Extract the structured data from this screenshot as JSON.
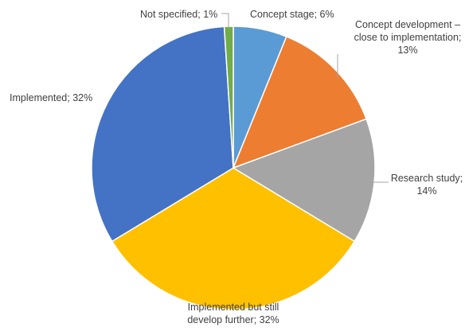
{
  "chart_data": {
    "type": "pie",
    "slices": [
      {
        "name": "Concept stage",
        "value": 6,
        "color": "#5B9BD5",
        "label_lines": [
          "Concept stage; 6%"
        ]
      },
      {
        "name": "Concept development – close to implementation",
        "value": 13,
        "color": "#ED7D31",
        "label_lines": [
          "Concept development –",
          "close to implementation;",
          "13%"
        ]
      },
      {
        "name": "Research study",
        "value": 14,
        "color": "#A5A5A5",
        "label_lines": [
          "Research study;",
          "14%"
        ]
      },
      {
        "name": "Implemented but still develop further",
        "value": 32,
        "color": "#FFC000",
        "label_lines": [
          "Implemented but still",
          "develop further; 32%"
        ]
      },
      {
        "name": "Implemented",
        "value": 32,
        "color": "#4472C4",
        "label_lines": [
          "Implemented; 32%"
        ]
      },
      {
        "name": "Not specified",
        "value": 1,
        "color": "#70AD47",
        "label_lines": [
          "Not specified; 1%"
        ]
      }
    ],
    "legend": "none"
  }
}
